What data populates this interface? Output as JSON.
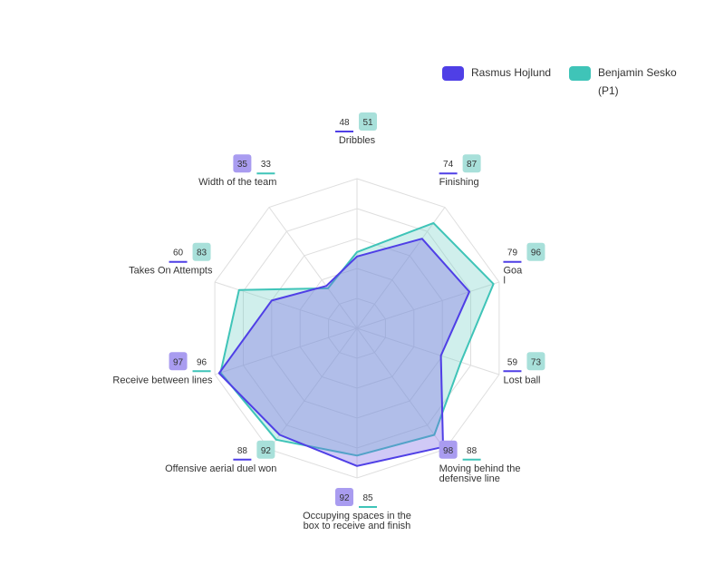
{
  "chart_data": {
    "type": "radar",
    "range": [
      0,
      100
    ],
    "grid_levels": 5,
    "legend_placement": "top-right",
    "metrics": [
      "Dribbles",
      "Finishing",
      "Goal",
      "Lost ball",
      "Moving behind the defensive line",
      "Occupying spaces in the box to receive and finish",
      "Offensive aerial duel won",
      "Receive between lines",
      "Takes On Attempts",
      "Width of the team"
    ],
    "series": [
      {
        "name": "Rasmus Hojlund",
        "color": "#4f3fe6",
        "fill": "rgba(120,100,230,0.35)",
        "values": [
          48,
          74,
          79,
          59,
          98,
          92,
          88,
          97,
          60,
          35
        ]
      },
      {
        "name": "Benjamin Sesko (P1)",
        "color": "#3fc4b8",
        "fill": "rgba(120,210,200,0.35)",
        "values": [
          51,
          87,
          96,
          73,
          88,
          85,
          92,
          96,
          83,
          33
        ]
      }
    ]
  }
}
